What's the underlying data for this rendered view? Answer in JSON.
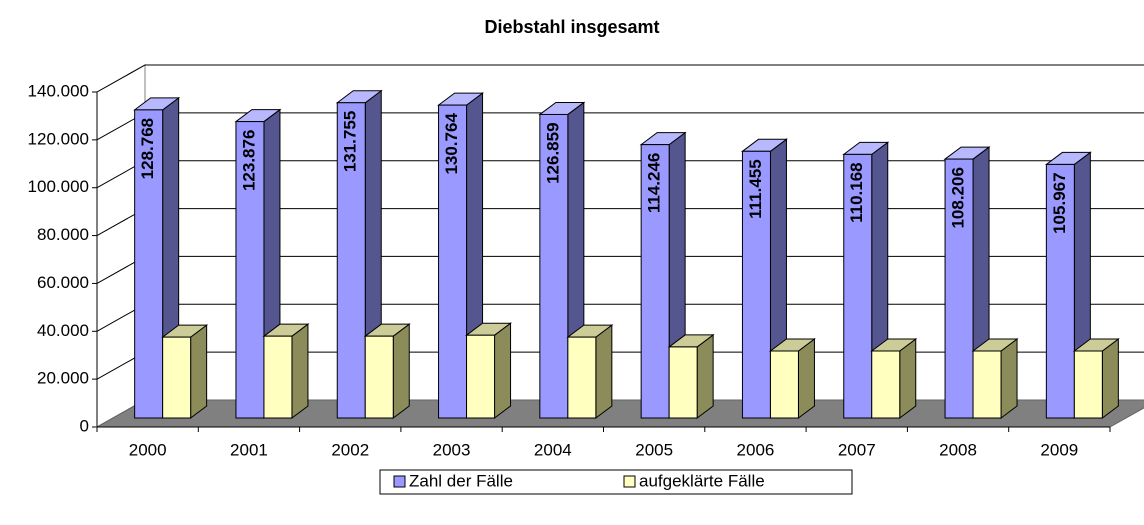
{
  "chart_data": {
    "type": "bar3d",
    "title": "Diebstahl insgesamt",
    "categories": [
      "2000",
      "2001",
      "2002",
      "2003",
      "2004",
      "2005",
      "2006",
      "2007",
      "2008",
      "2009"
    ],
    "series": [
      {
        "name": "Zahl der Fälle",
        "color": "#9999ff",
        "values": [
          128768,
          123876,
          131755,
          130764,
          126859,
          114246,
          111455,
          110168,
          108206,
          105967
        ],
        "value_labels": [
          "128.768",
          "123.876",
          "131.755",
          "130.764",
          "126.859",
          "114.246",
          "111.455",
          "110.168",
          "108.206",
          "105.967"
        ]
      },
      {
        "name": "aufgeklärte Fälle",
        "color": "#ffffc0",
        "values": [
          33800,
          34200,
          34200,
          34600,
          33800,
          29700,
          28000,
          28000,
          28000,
          28000
        ]
      }
    ],
    "ylim": [
      0,
      140000
    ],
    "yticks": [
      0,
      {
        "value": 20000,
        "label": "20.000"
      },
      {
        "value": 40000,
        "label": "40.000"
      },
      {
        "value": 60000,
        "label": "60.000"
      },
      {
        "value": 80000,
        "label": "80.000"
      },
      {
        "value": 100000,
        "label": "100.000"
      },
      {
        "value": 120000,
        "label": "120.000"
      },
      {
        "value": 140000,
        "label": "140.000"
      }
    ],
    "grid": true
  }
}
